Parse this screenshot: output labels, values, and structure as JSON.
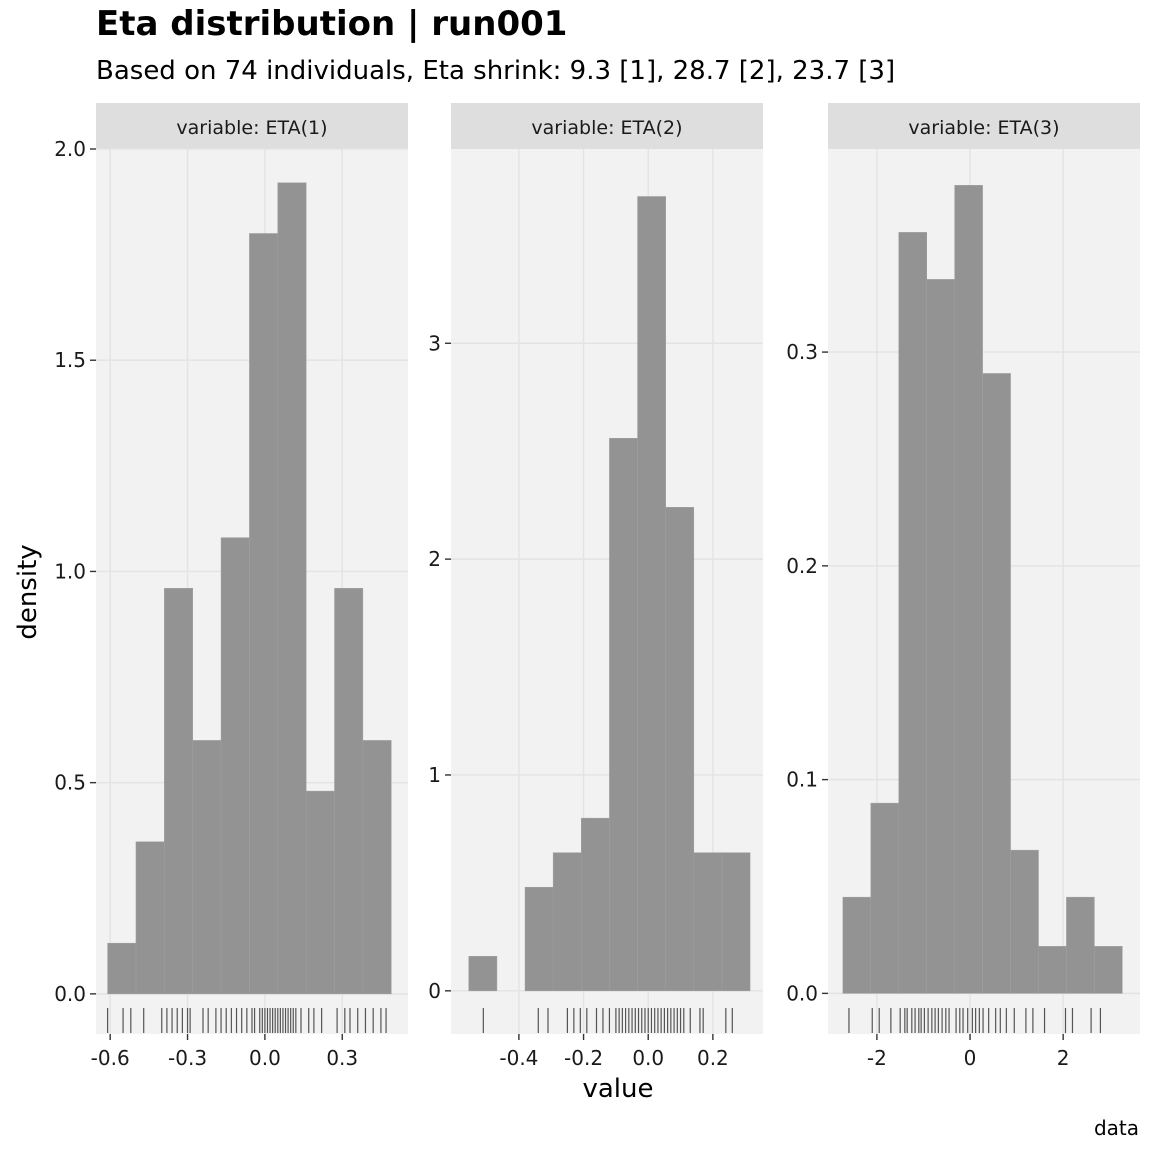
{
  "title": "Eta distribution | run001",
  "subtitle": "Based on 74 individuals, Eta shrink: 9.3 [1], 28.7 [2], 23.7 [3]",
  "xlabel": "value",
  "ylabel": "density",
  "caption": "data",
  "colors": {
    "panel_bg": "#f2f2f2",
    "strip_bg": "#dedede",
    "grid": "#e3e3e3",
    "bar_fill": "#939393",
    "rug": "#555555",
    "tick": "#333333"
  },
  "chart_data": [
    {
      "type": "bar",
      "facet": "variable: ETA(1)",
      "bin_edges": [
        -0.61,
        -0.5,
        -0.39,
        -0.28,
        -0.17,
        -0.06,
        0.05,
        0.16,
        0.27,
        0.38,
        0.49
      ],
      "values": [
        0.12,
        0.36,
        0.96,
        0.6,
        1.08,
        1.8,
        1.92,
        0.48,
        0.96,
        0.6
      ],
      "xlim": [
        -0.655,
        0.555
      ],
      "ylim": [
        -0.095,
        2.0
      ],
      "x_ticks": [
        -0.6,
        -0.3,
        0.0,
        0.3
      ],
      "x_tick_labels": [
        "-0.6",
        "-0.3",
        "0.0",
        "0.3"
      ],
      "y_ticks": [
        0,
        0.5,
        1.0,
        1.5,
        2.0
      ],
      "y_tick_labels": [
        "0.0",
        "0.5",
        "1.0",
        "1.5",
        "2.0"
      ],
      "rug": [
        -0.61,
        -0.55,
        -0.52,
        -0.47,
        -0.4,
        -0.38,
        -0.36,
        -0.34,
        -0.32,
        -0.3,
        -0.29,
        -0.24,
        -0.22,
        -0.19,
        -0.17,
        -0.15,
        -0.13,
        -0.11,
        -0.09,
        -0.07,
        -0.05,
        -0.04,
        -0.02,
        -0.01,
        0.0,
        0.01,
        0.02,
        0.03,
        0.04,
        0.05,
        0.06,
        0.07,
        0.08,
        0.09,
        0.1,
        0.11,
        0.12,
        0.14,
        0.17,
        0.19,
        0.22,
        0.28,
        0.31,
        0.33,
        0.36,
        0.39,
        0.42,
        0.45,
        0.47
      ]
    },
    {
      "type": "bar",
      "facet": "variable: ETA(2)",
      "bin_edges": [
        -0.555,
        -0.468,
        -0.381,
        -0.294,
        -0.207,
        -0.12,
        -0.033,
        0.054,
        0.141,
        0.228,
        0.315
      ],
      "values": [
        0.16,
        0,
        0.48,
        0.64,
        0.8,
        2.56,
        3.68,
        2.24,
        0.64,
        0.64
      ],
      "xlim": [
        -0.61,
        0.355
      ],
      "ylim": [
        -0.2,
        3.9
      ],
      "x_ticks": [
        -0.4,
        -0.2,
        0.0,
        0.2
      ],
      "x_tick_labels": [
        "-0.4",
        "-0.2",
        "0.0",
        "0.2"
      ],
      "y_ticks": [
        0,
        1,
        2,
        3
      ],
      "y_tick_labels": [
        "0",
        "1",
        "2",
        "3"
      ],
      "rug": [
        -0.51,
        -0.34,
        -0.31,
        -0.25,
        -0.23,
        -0.21,
        -0.19,
        -0.16,
        -0.14,
        -0.12,
        -0.1,
        -0.09,
        -0.08,
        -0.07,
        -0.06,
        -0.05,
        -0.04,
        -0.03,
        -0.02,
        -0.01,
        0.0,
        0.01,
        0.02,
        0.03,
        0.04,
        0.05,
        0.06,
        0.07,
        0.08,
        0.09,
        0.1,
        0.11,
        0.13,
        0.16,
        0.17,
        0.24,
        0.26
      ]
    },
    {
      "type": "bar",
      "facet": "variable: ETA(3)",
      "bin_edges": [
        -2.73,
        -2.13,
        -1.53,
        -0.93,
        -0.33,
        0.27,
        0.87,
        1.47,
        2.07,
        2.67,
        3.27
      ],
      "values": [
        0.045,
        0.089,
        0.356,
        0.334,
        0.378,
        0.29,
        0.067,
        0.022,
        0.045,
        0.022
      ],
      "xlim": [
        -3.05,
        3.65
      ],
      "ylim": [
        -0.019,
        0.395
      ],
      "x_ticks": [
        -2,
        0,
        2
      ],
      "x_tick_labels": [
        "-2",
        "0",
        "2"
      ],
      "y_ticks": [
        0,
        0.1,
        0.2,
        0.3
      ],
      "y_tick_labels": [
        "0.0",
        "0.1",
        "0.2",
        "0.3"
      ],
      "rug": [
        -2.6,
        -2.1,
        -1.95,
        -1.7,
        -1.5,
        -1.4,
        -1.35,
        -1.25,
        -1.18,
        -1.1,
        -1.05,
        -0.98,
        -0.9,
        -0.82,
        -0.75,
        -0.68,
        -0.6,
        -0.52,
        -0.45,
        -0.3,
        -0.22,
        -0.15,
        -0.05,
        0.05,
        0.12,
        0.2,
        0.28,
        0.4,
        0.55,
        0.65,
        0.78,
        0.95,
        1.2,
        1.35,
        1.6,
        2.05,
        2.2,
        2.6,
        2.8
      ]
    }
  ]
}
